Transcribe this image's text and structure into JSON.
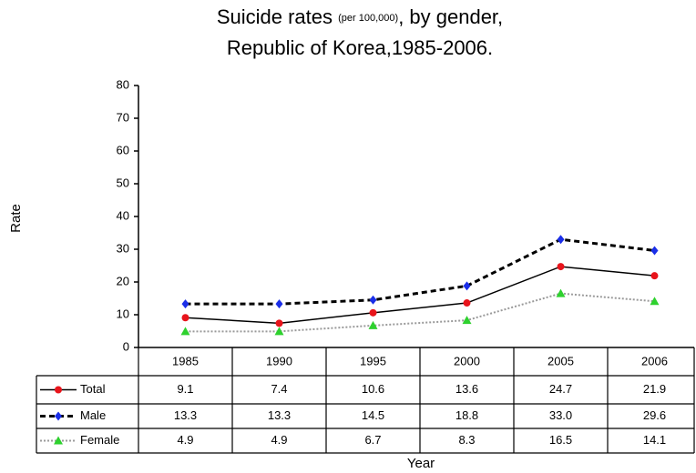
{
  "chart_data": {
    "type": "line",
    "title": "Suicide rates",
    "title_note": "(per 100,000)",
    "title_rest": ", by gender,",
    "subtitle": "Republic of Korea,1985-2006.",
    "xlabel": "Year",
    "ylabel": "Rate",
    "categories": [
      "1985",
      "1990",
      "1995",
      "2000",
      "2005",
      "2006"
    ],
    "ylim": [
      0,
      80
    ],
    "yticks": [
      0,
      10,
      20,
      30,
      40,
      50,
      60,
      70,
      80
    ],
    "series": [
      {
        "name": "Total",
        "color": "#000000",
        "marker_color": "#e8141b",
        "marker": "circle",
        "linestyle": "solid",
        "values": [
          9.1,
          7.4,
          10.6,
          13.6,
          24.7,
          21.9
        ],
        "value_labels": [
          "9.1",
          "7.4",
          "10.6",
          "13.6",
          "24.7",
          "21.9"
        ]
      },
      {
        "name": "Male",
        "color": "#000000",
        "marker_color": "#1a2ee8",
        "marker": "diamond",
        "linestyle": "dashed",
        "values": [
          13.3,
          13.3,
          14.5,
          18.8,
          33.0,
          29.6
        ],
        "value_labels": [
          "13.3",
          "13.3",
          "14.5",
          "18.8",
          "33.0",
          "29.6"
        ]
      },
      {
        "name": "Female",
        "color": "#9a9a9a",
        "marker_color": "#2ed12e",
        "marker": "triangle",
        "linestyle": "dotted",
        "values": [
          4.9,
          4.9,
          6.7,
          8.3,
          16.5,
          14.1
        ],
        "value_labels": [
          "4.9",
          "4.9",
          "6.7",
          "8.3",
          "16.5",
          "14.1"
        ]
      }
    ]
  }
}
